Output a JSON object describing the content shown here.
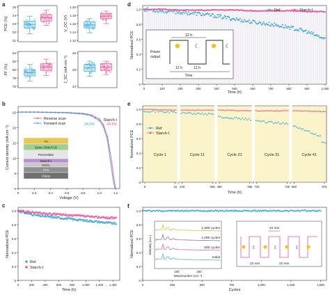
{
  "colors": {
    "ref": "#3ba7d6",
    "starch": "#e8559a",
    "cycle_bg": "#fbf3c9",
    "box_ref": "#c9e8f5",
    "box_starch": "#f8d3e4",
    "sun": "#f2c418"
  },
  "chart_data": [
    {
      "id": "a",
      "panel_label": "a",
      "type": "box",
      "subplots": [
        {
          "ylabel": "PCE (%)",
          "yticks": [
            "21",
            "22",
            "23",
            "24",
            "25"
          ],
          "ylim": [
            21,
            25
          ],
          "series": [
            {
              "name": "Ref",
              "q1": 22.5,
              "median": 22.9,
              "q3": 23.3,
              "whisker_low": 21.8,
              "whisker_high": 23.9
            },
            {
              "name": "Starch-I",
              "q1": 23.3,
              "median": 23.7,
              "q3": 24.1,
              "whisker_low": 22.8,
              "whisker_high": 24.6
            }
          ]
        },
        {
          "ylabel": "V_OC (V)",
          "yticks": [
            "1.12",
            "1.14",
            "1.16",
            "1.18",
            "1.20"
          ],
          "ylim": [
            1.12,
            1.2
          ],
          "series": [
            {
              "name": "Ref",
              "q1": 1.15,
              "median": 1.157,
              "q3": 1.164,
              "whisker_low": 1.138,
              "whisker_high": 1.172
            },
            {
              "name": "Starch-I",
              "q1": 1.172,
              "median": 1.178,
              "q3": 1.184,
              "whisker_low": 1.16,
              "whisker_high": 1.19
            }
          ]
        },
        {
          "ylabel": "FF (%)",
          "yticks": [
            "76",
            "78",
            "80",
            "82",
            "84"
          ],
          "ylim": [
            76,
            84
          ],
          "series": [
            {
              "name": "Ref",
              "q1": 78.5,
              "median": 79.3,
              "q3": 80.0,
              "whisker_low": 77.2,
              "whisker_high": 81.2
            },
            {
              "name": "Starch-I",
              "q1": 79.8,
              "median": 80.6,
              "q3": 81.4,
              "whisker_low": 78.6,
              "whisker_high": 82.5
            }
          ]
        },
        {
          "ylabel": "J_SC (mA cm⁻²)",
          "yticks": [
            "24",
            "25",
            "26"
          ],
          "ylim": [
            24,
            26
          ],
          "series": [
            {
              "name": "Ref",
              "q1": 24.9,
              "median": 25.1,
              "q3": 25.3,
              "whisker_low": 24.6,
              "whisker_high": 25.5
            },
            {
              "name": "Starch-I",
              "q1": 24.95,
              "median": 25.15,
              "q3": 25.35,
              "whisker_low": 24.7,
              "whisker_high": 25.5
            }
          ]
        }
      ]
    },
    {
      "id": "b",
      "panel_label": "b",
      "type": "line",
      "xlabel": "Voltage (V)",
      "ylabel": "Current density (mA cm⁻²)",
      "xticks": [
        "0",
        "0.2",
        "0.4",
        "0.6",
        "0.8",
        "1.0",
        "1.2"
      ],
      "xlim": [
        0,
        1.25
      ],
      "yticks": [
        "0",
        "5",
        "10",
        "15",
        "20",
        "25"
      ],
      "ylim": [
        0,
        27
      ],
      "device_label": "Starch-I",
      "annotations": [
        "24.0%",
        "24.6%"
      ],
      "legend": [
        "Reverse scan",
        "Forward scan"
      ],
      "stack": [
        "Au",
        "Spiro-OMeTAD",
        "Perovskite",
        "Starch-I",
        "SnO₂",
        "ITO",
        "Glass"
      ],
      "series": [
        {
          "name": "Reverse scan",
          "x": [
            0,
            0.2,
            0.4,
            0.6,
            0.8,
            0.9,
            1.0,
            1.05,
            1.1,
            1.15,
            1.18,
            1.2
          ],
          "y": [
            25.2,
            25.2,
            25.1,
            25.0,
            24.7,
            24.2,
            22.8,
            21.0,
            17.0,
            9.0,
            3.0,
            0
          ]
        },
        {
          "name": "Forward scan",
          "x": [
            0,
            0.2,
            0.4,
            0.6,
            0.8,
            0.9,
            1.0,
            1.05,
            1.1,
            1.14,
            1.17,
            1.19
          ],
          "y": [
            25.1,
            25.1,
            25.0,
            24.9,
            24.5,
            23.9,
            22.3,
            20.3,
            15.8,
            8.0,
            2.5,
            0
          ]
        }
      ]
    },
    {
      "id": "c",
      "panel_label": "c",
      "type": "scatter",
      "xlabel": "Time (h)",
      "ylabel": "Normalized PCE",
      "xticks": [
        "0",
        "200",
        "400",
        "600",
        "800",
        "1,000",
        "1,200",
        "1,400"
      ],
      "xlim": [
        0,
        1500
      ],
      "yticks": [
        "0",
        "0.2",
        "0.4",
        "0.6",
        "0.8",
        "1.0"
      ],
      "ylim": [
        0,
        1.05
      ],
      "legend": [
        "Ref",
        "Starch-I"
      ],
      "series": [
        {
          "name": "Ref",
          "x": [
            0,
            100,
            200,
            300,
            400,
            500,
            600,
            700,
            800,
            900,
            1000,
            1100,
            1200,
            1300,
            1400,
            1450
          ],
          "y": [
            1.0,
            0.97,
            0.95,
            0.93,
            0.92,
            0.91,
            0.9,
            0.89,
            0.88,
            0.87,
            0.86,
            0.85,
            0.84,
            0.83,
            0.82,
            0.81
          ]
        },
        {
          "name": "Starch-I",
          "x": [
            0,
            100,
            200,
            300,
            400,
            500,
            600,
            700,
            800,
            900,
            1000,
            1100,
            1200,
            1300,
            1400,
            1450
          ],
          "y": [
            1.0,
            0.99,
            0.98,
            0.97,
            0.96,
            0.95,
            0.95,
            0.94,
            0.93,
            0.93,
            0.92,
            0.91,
            0.91,
            0.9,
            0.9,
            0.89
          ]
        }
      ]
    },
    {
      "id": "d",
      "panel_label": "d",
      "type": "line",
      "xlabel": "Time (h)",
      "ylabel": "Normalized PCE",
      "xticks": [
        "0",
        "100",
        "200",
        "300",
        "400",
        "500",
        "600",
        "700",
        "800",
        "900",
        "1,000"
      ],
      "xlim": [
        0,
        1000
      ],
      "yticks": [
        "0",
        "0.2",
        "0.4",
        "0.6",
        "0.8",
        "1.0"
      ],
      "ylim": [
        0,
        1.05
      ],
      "legend": [
        "Ref",
        "Starch-I"
      ],
      "inset": {
        "period_label": "12 h",
        "ylabel_line1": "Power",
        "ylabel_line2": "output",
        "xlabel": "Time",
        "half_labels": [
          "12 h",
          "12 h"
        ]
      },
      "series": [
        {
          "name": "Ref",
          "x": [
            0,
            100,
            200,
            300,
            400,
            500,
            600,
            700,
            800,
            900,
            1000
          ],
          "y": [
            1.0,
            0.98,
            0.96,
            0.94,
            0.91,
            0.87,
            0.83,
            0.8,
            0.76,
            0.7,
            0.6
          ]
        },
        {
          "name": "Starch-I",
          "x": [
            0,
            100,
            200,
            300,
            400,
            500,
            600,
            700,
            800,
            900,
            1000
          ],
          "y": [
            1.0,
            1.0,
            0.99,
            0.99,
            0.99,
            0.99,
            0.98,
            0.98,
            0.98,
            0.97,
            0.97
          ]
        }
      ]
    },
    {
      "id": "e",
      "panel_label": "e",
      "type": "scatter",
      "xlabel": "Time (h)",
      "ylabel": "Normalized PCE",
      "xticks": [
        "0",
        "15",
        "240",
        "255",
        "480",
        "495",
        "720",
        "735",
        "960",
        "975"
      ],
      "yticks": [
        "0",
        "0.2",
        "0.4",
        "0.6",
        "0.8",
        "1.0"
      ],
      "ylim": [
        0,
        1.05
      ],
      "legend": [
        "Ref",
        "Starch-I"
      ],
      "cycles": [
        "Cycle 1",
        "Cycle 11",
        "Cycle 21",
        "Cycle 31",
        "Cycle 41"
      ],
      "series": [
        {
          "name": "Ref",
          "cycle_start": [
            0.98,
            0.95,
            0.9,
            0.84,
            0.78
          ],
          "cycle_end": [
            0.96,
            0.93,
            0.86,
            0.8,
            0.6
          ]
        },
        {
          "name": "Starch-I",
          "cycle_start": [
            1.0,
            0.99,
            0.99,
            0.98,
            0.98
          ],
          "cycle_end": [
            0.99,
            0.99,
            0.98,
            0.98,
            0.97
          ]
        }
      ]
    },
    {
      "id": "f",
      "panel_label": "f",
      "type": "scatter",
      "xlabel": "Cycles",
      "ylabel": "Normalized PCE",
      "xticks": [
        "0",
        "250",
        "500",
        "750",
        "1,000",
        "1,250",
        "1,500"
      ],
      "xlim": [
        0,
        1550
      ],
      "yticks": [
        "0",
        "0.2",
        "0.4",
        "0.6",
        "0.8",
        "1.0"
      ],
      "ylim": [
        0,
        1.05
      ],
      "series": [
        {
          "name": "Starch-I",
          "x": [
            0,
            250,
            500,
            750,
            1000,
            1250,
            1500
          ],
          "y": [
            1.0,
            1.0,
            0.99,
            1.0,
            1.0,
            0.99,
            1.0
          ]
        }
      ],
      "inset_xrd": {
        "xlabel": "Wavenumber (cm⁻¹)",
        "ylabel": "Intensity (a.u.)",
        "xticks": [
          "200",
          "250"
        ],
        "traces": [
          "1,500 cycles",
          "1,000 cycles",
          "500 cycles",
          "Initial"
        ],
        "trace_colors": [
          "#d9b52a",
          "#7f5aa8",
          "#e8559a",
          "#3ba7d6"
        ]
      },
      "inset_cycle": {
        "label_top": "10 min",
        "label_left": "10 min",
        "label_right": "10 min"
      }
    }
  ]
}
